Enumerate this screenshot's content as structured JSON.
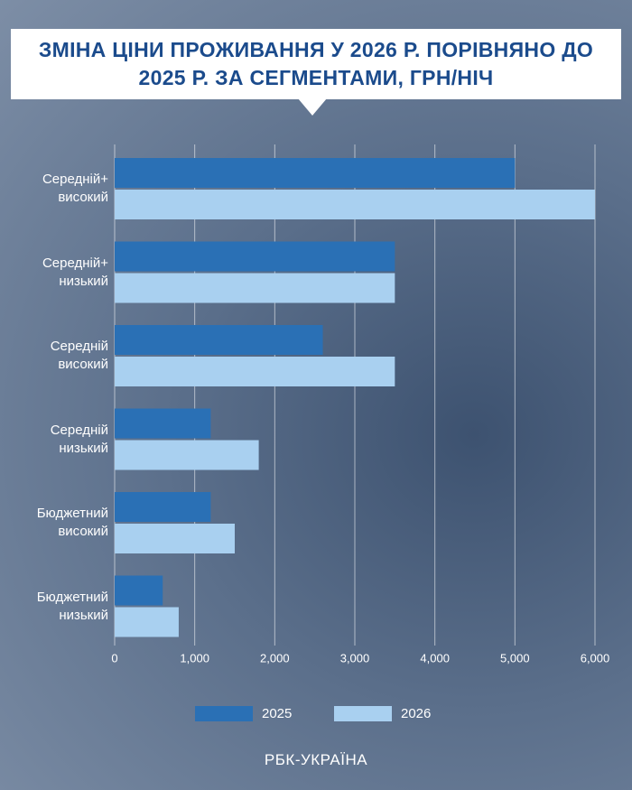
{
  "chart_data": {
    "type": "bar",
    "orientation": "horizontal",
    "title": "ЗМІНА ЦІНИ ПРОЖИВАННЯ У 2026 Р. ПОРІВНЯНО ДО 2025 Р. ЗА СЕГМЕНТАМИ, ГРН/НІЧ",
    "categories": [
      "Середній+ високий",
      "Середній+ низький",
      "Середній високий",
      "Середній низький",
      "Бюджетний високий",
      "Бюджетний низький"
    ],
    "series": [
      {
        "name": "2025",
        "color": "#2a70b5",
        "values": [
          5000,
          3500,
          2600,
          1200,
          1200,
          600
        ]
      },
      {
        "name": "2026",
        "color": "#a9d0f0",
        "values": [
          6000,
          3500,
          3500,
          1800,
          1500,
          800
        ]
      }
    ],
    "xlim": [
      0,
      6000
    ],
    "xticks": [
      0,
      {
        "value": 1000,
        "label": "1,000"
      },
      {
        "value": 2000,
        "label": "2,000"
      },
      {
        "value": 3000,
        "label": "3,000"
      },
      {
        "value": 4000,
        "label": "4,000"
      },
      {
        "value": 5000,
        "label": "5,000"
      },
      {
        "value": 6000,
        "label": "6,000"
      }
    ],
    "grid": true,
    "legend": "bottom",
    "brand": "РБК-УКРАЇНА"
  }
}
